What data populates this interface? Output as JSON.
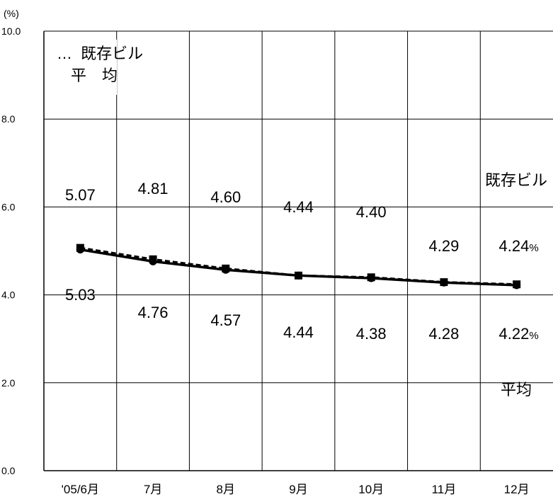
{
  "chart_data": {
    "type": "line",
    "unit_label": "(%)",
    "ylim": [
      0,
      10
    ],
    "yticks": [
      "0.0",
      "2.0",
      "4.0",
      "6.0",
      "8.0",
      "10.0"
    ],
    "categories": [
      "'05/6月",
      "7月",
      "8月",
      "9月",
      "10月",
      "11月",
      "12月"
    ],
    "series": [
      {
        "name": "既存ビル",
        "marker": "square",
        "line": "dashed",
        "values": [
          5.07,
          4.81,
          4.6,
          4.44,
          4.4,
          4.29,
          4.24
        ],
        "labels": [
          "5.07",
          "4.81",
          "4.60",
          "4.44",
          "4.40",
          "4.29",
          "4.24"
        ]
      },
      {
        "name": "平均",
        "marker": "circle",
        "line": "solid",
        "values": [
          5.03,
          4.76,
          4.57,
          4.44,
          4.38,
          4.28,
          4.22
        ],
        "labels": [
          "5.03",
          "4.76",
          "4.57",
          "4.44",
          "4.38",
          "4.28",
          "4.22"
        ]
      }
    ],
    "grid": true,
    "legend": {
      "prefix": "…",
      "line1": "既存ビル",
      "line2": "平　均"
    },
    "percent_suffix": "%",
    "colors": {
      "line": "#000000",
      "grid": "#000000",
      "background": "#ffffff"
    }
  }
}
